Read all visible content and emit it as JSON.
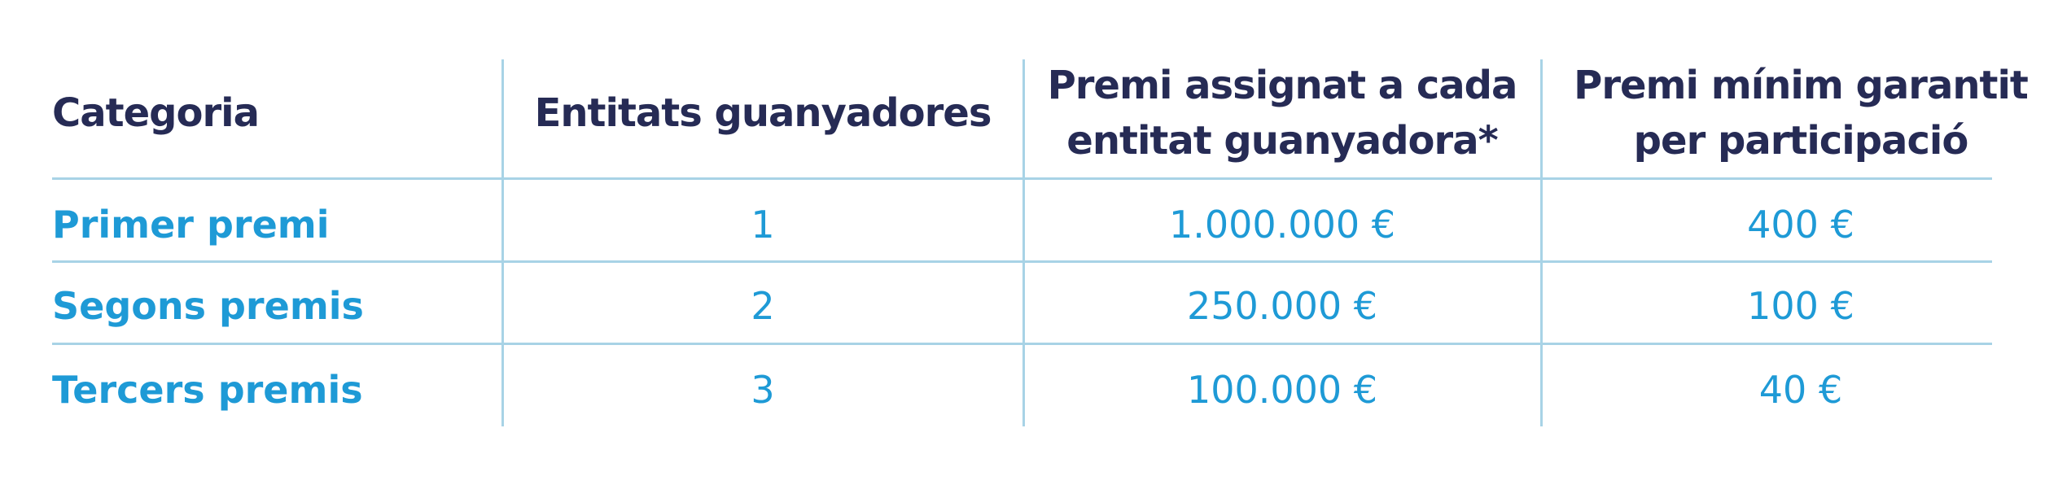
{
  "table": {
    "header": [
      [
        "Categoria"
      ],
      [
        "Entitats guanyadores"
      ],
      [
        "Premi assignat a cada",
        "entitat guanyadora*"
      ],
      [
        "Premi mínim garantit",
        "per participació"
      ]
    ],
    "rows": [
      [
        "Primer premi",
        "1",
        "1.000.000 €",
        "400 €"
      ],
      [
        "Segons premis",
        "2",
        "250.000 €",
        "100 €"
      ],
      [
        "Tercers premis",
        "3",
        "100.000 €",
        "40 €"
      ]
    ]
  }
}
